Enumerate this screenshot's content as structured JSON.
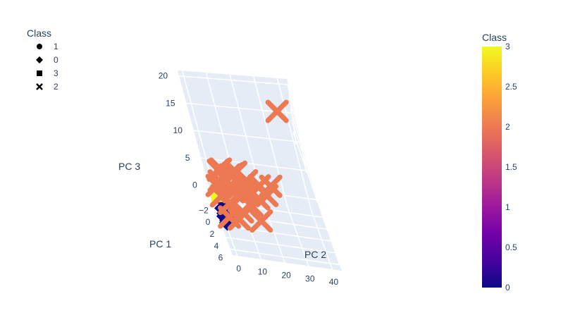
{
  "chart_data": {
    "type": "scatter",
    "dimension": "3d",
    "axes": {
      "x": {
        "label": "PC 1",
        "ticks": [
          -2,
          0,
          2,
          4,
          6
        ],
        "range": [
          -3,
          7
        ]
      },
      "y": {
        "label": "PC 2",
        "ticks": [
          0,
          10,
          20,
          30,
          40
        ],
        "range": [
          -2,
          44
        ]
      },
      "z": {
        "label": "PC 3",
        "ticks": [
          0,
          5,
          10,
          15,
          20
        ],
        "range": [
          -2,
          21
        ]
      }
    },
    "grid": true,
    "legend": {
      "title": "Class",
      "placement": "top-left",
      "entries": [
        {
          "label": "1",
          "symbol": "circle"
        },
        {
          "label": "0",
          "symbol": "diamond"
        },
        {
          "label": "3",
          "symbol": "square"
        },
        {
          "label": "2",
          "symbol": "x"
        }
      ]
    },
    "colorbar": {
      "title": "Class",
      "placement": "right",
      "range": [
        0,
        3
      ],
      "ticks": [
        "0",
        "0.5",
        "1",
        "1.5",
        "2",
        "2.5",
        "3"
      ],
      "colors": [
        "#0d0887",
        "#46039f",
        "#7201a8",
        "#9c179e",
        "#bd3786",
        "#d8576b",
        "#ed7953",
        "#fb9f3a",
        "#fdca26",
        "#f0f921"
      ]
    },
    "series": [
      {
        "class": 1,
        "symbol": "circle",
        "color": "#9c179e",
        "points": [
          [
            -1.6,
            1.5,
            0.5
          ],
          [
            -1.4,
            2.2,
            0.9
          ],
          [
            -1.2,
            1.0,
            0.2
          ],
          [
            -1.0,
            2.8,
            1.2
          ],
          [
            -1.5,
            0.5,
            0.0
          ],
          [
            -1.1,
            1.8,
            -0.2
          ],
          [
            -0.9,
            0.8,
            0.6
          ],
          [
            -1.3,
            3.2,
            1.5
          ]
        ]
      },
      {
        "class": 0,
        "symbol": "diamond",
        "color": "#0d0887",
        "points": [
          [
            0.5,
            1.0,
            -1.2
          ],
          [
            0.9,
            1.5,
            -1.5
          ],
          [
            1.2,
            0.5,
            -1.0
          ],
          [
            0.7,
            2.0,
            -0.8
          ],
          [
            1.5,
            1.2,
            -1.4
          ],
          [
            0.3,
            0.8,
            -0.5
          ],
          [
            1.1,
            2.5,
            -1.1
          ],
          [
            1.7,
            0.8,
            -1.6
          ],
          [
            0.8,
            1.8,
            -0.3
          ]
        ]
      },
      {
        "class": 3,
        "symbol": "square",
        "color": "#f0f921",
        "points": [
          [
            -0.8,
            1.0,
            1.5
          ],
          [
            -0.5,
            1.6,
            2.2
          ],
          [
            -0.6,
            0.6,
            0.8
          ],
          [
            -0.3,
            1.3,
            1.8
          ],
          [
            -0.9,
            1.9,
            2.6
          ],
          [
            -0.4,
            0.4,
            1.2
          ]
        ]
      },
      {
        "class": 2,
        "symbol": "x",
        "color": "#ed7953",
        "points": [
          [
            0.2,
            3.0,
            4.5
          ],
          [
            -0.5,
            5.0,
            6.0
          ],
          [
            0.8,
            6.0,
            5.5
          ],
          [
            -1.2,
            4.0,
            5.0
          ],
          [
            1.5,
            8.0,
            4.2
          ],
          [
            0.5,
            10.0,
            6.5
          ],
          [
            2.0,
            12.0,
            5.0
          ],
          [
            1.0,
            15.0,
            6.0
          ],
          [
            2.5,
            18.0,
            4.5
          ],
          [
            1.8,
            20.0,
            6.2
          ],
          [
            3.0,
            14.0,
            3.5
          ],
          [
            2.2,
            22.0,
            5.0
          ],
          [
            0.0,
            7.0,
            3.0
          ],
          [
            1.2,
            2.0,
            2.8
          ],
          [
            2.8,
            9.0,
            2.0
          ],
          [
            3.5,
            16.0,
            1.5
          ],
          [
            0.4,
            1.5,
            3.8
          ],
          [
            1.6,
            4.5,
            2.0
          ],
          [
            -0.8,
            8.5,
            4.8
          ],
          [
            2.4,
            25.0,
            7.0
          ],
          [
            1.4,
            11.5,
            7.8
          ],
          [
            0.9,
            13.0,
            3.8
          ],
          [
            -0.2,
            37.0,
            18.0
          ],
          [
            3.2,
            6.5,
            1.0
          ],
          [
            2.9,
            2.5,
            0.8
          ]
        ]
      }
    ]
  }
}
